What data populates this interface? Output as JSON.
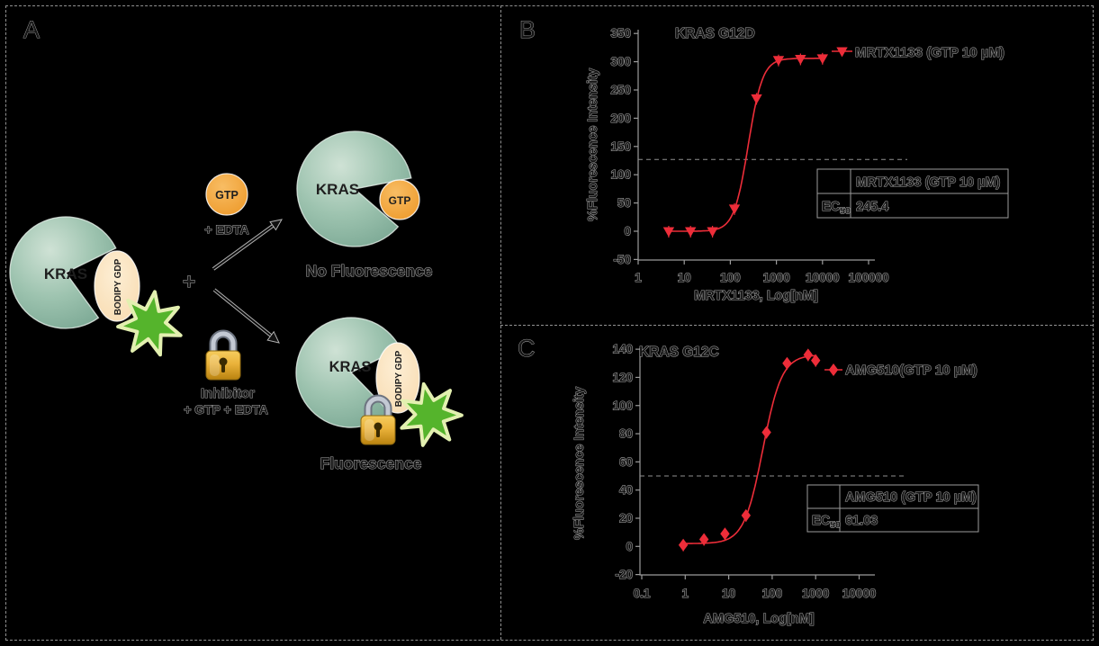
{
  "figure": {
    "background": "#000000",
    "border_color": "#919191"
  },
  "colors": {
    "curve_red": "#ed2d39",
    "kras_teal": "#8cb9a4",
    "gtp_orange": "#f4a440",
    "bodipy_cream": "#fbe4c1",
    "star_green": "#55b42c",
    "ghost_text_rim": "#acacac",
    "axis_gray": "#9b9b9b"
  },
  "panel_a": {
    "label": "A",
    "kras_gdp_complex": {
      "protein": "KRAS",
      "nucleotide": "BODIPY GDP"
    },
    "plus": "+",
    "gtp": {
      "label": "GTP",
      "condition": "+ EDTA"
    },
    "inhibitor": {
      "label": "Inhibitor",
      "condition": "+ GTP + EDTA"
    },
    "outcome_no_fluorescence": {
      "protein": "KRAS",
      "nucleotide": "GTP",
      "result": "No Fluorescence"
    },
    "outcome_fluorescence": {
      "protein": "KRAS",
      "nucleotide": "BODIPY GDP",
      "result": "Fluorescence"
    }
  },
  "chart_data": [
    {
      "id": "b",
      "panel_label": "B",
      "type": "scatter",
      "title": "KRAS G12D",
      "xlabel": "MRTX1133, Log[nM]",
      "ylabel": "%Fluorescence Intensity",
      "x_scale": "log",
      "xlim": [
        1,
        100000
      ],
      "ylim": [
        -50,
        350
      ],
      "x_ticks": [
        1,
        10,
        100,
        1000,
        10000,
        100000
      ],
      "x_tick_labels": [
        "1",
        "10",
        "100",
        "1000",
        "10000",
        "100000"
      ],
      "y_ticks": [
        -50,
        0,
        50,
        100,
        150,
        200,
        250,
        300,
        350
      ],
      "grid": false,
      "dashed_line_y": 127,
      "series": [
        {
          "name": "MRTX1133 (GTP 10 µM)",
          "marker": "triangle-down",
          "color": "#ed2d39",
          "x": [
            4.6,
            13.7,
            41,
            123,
            370,
            1111,
            3333,
            10000
          ],
          "y": [
            0,
            0,
            0,
            40,
            235,
            303,
            305,
            306
          ]
        }
      ],
      "fit_curve": {
        "model": "4PL",
        "bottom": 0,
        "top": 306,
        "ec50": 245.4,
        "hill": 2.8
      },
      "results_table": {
        "header": "MRTX1133 (GTP 10 µM)",
        "row_label": "EC",
        "row_label_sub": "50",
        "ec50_value": "245.4"
      }
    },
    {
      "id": "c",
      "panel_label": "C",
      "type": "scatter",
      "title": "KRAS G12C",
      "xlabel": "AMG510, Log[nM]",
      "ylabel": "%Fluorescence Intensity",
      "x_scale": "log",
      "xlim": [
        0.1,
        10000
      ],
      "ylim": [
        -20,
        140
      ],
      "x_ticks": [
        0.1,
        1,
        10,
        100,
        1000,
        10000
      ],
      "x_tick_labels": [
        "0.1",
        "1",
        "10",
        "100",
        "1000",
        "10000"
      ],
      "y_ticks": [
        -20,
        0,
        20,
        40,
        60,
        80,
        100,
        120,
        140
      ],
      "grid": false,
      "dashed_line_y": 50,
      "series": [
        {
          "name": "AMG510(GTP 10 µM)",
          "marker": "diamond",
          "color": "#ed2d39",
          "x": [
            0.9,
            2.7,
            8.2,
            25,
            74,
            220,
            670,
            1000
          ],
          "y": [
            1,
            5,
            9,
            22,
            81,
            130,
            136,
            132
          ]
        }
      ],
      "fit_curve": {
        "model": "4PL",
        "bottom": 2,
        "top": 136,
        "ec50": 61.03,
        "hill": 2.0
      },
      "results_table": {
        "header": "AMG510 (GTP 10 µM)",
        "row_label": "EC",
        "row_label_sub": "50",
        "ec50_value": "61.03"
      }
    }
  ]
}
